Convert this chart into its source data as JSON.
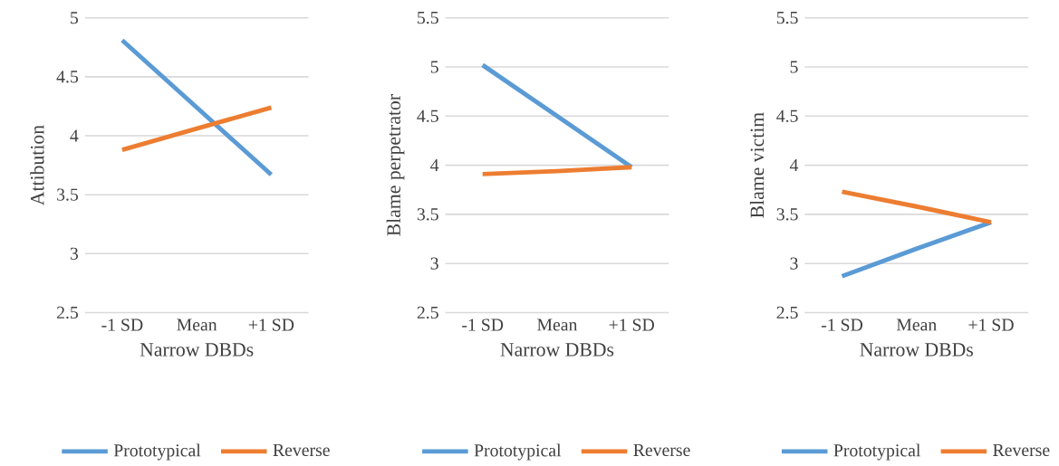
{
  "chart_data": [
    {
      "type": "line",
      "xlabel": "Narrow DBDs",
      "ylabel": "Attibution",
      "categories": [
        "-1 SD",
        "Mean",
        "+1 SD"
      ],
      "series": [
        {
          "name": "Prototypical",
          "color": "#5b9bd5",
          "values": [
            4.81,
            4.24,
            3.67
          ]
        },
        {
          "name": "Reverse",
          "color": "#ed7d31",
          "values": [
            3.88,
            4.06,
            4.24
          ]
        }
      ],
      "ylim": [
        2.5,
        5
      ],
      "yticks": [
        2.5,
        3,
        3.5,
        4,
        4.5,
        5
      ],
      "grid": "y",
      "legend": "bottom",
      "marker": "none",
      "line_style": "solid"
    },
    {
      "type": "line",
      "xlabel": "Narrow DBDs",
      "ylabel": "Blame perpetrator",
      "categories": [
        "-1 SD",
        "Mean",
        "+1 SD"
      ],
      "series": [
        {
          "name": "Prototypical",
          "color": "#5b9bd5",
          "values": [
            5.02,
            4.5,
            3.98
          ]
        },
        {
          "name": "Reverse",
          "color": "#ed7d31",
          "values": [
            3.91,
            3.94,
            3.98
          ]
        }
      ],
      "ylim": [
        2.5,
        5.5
      ],
      "yticks": [
        2.5,
        3,
        3.5,
        4,
        4.5,
        5,
        5.5
      ],
      "grid": "y",
      "legend": "bottom",
      "marker": "none",
      "line_style": "solid"
    },
    {
      "type": "line",
      "xlabel": "Narrow DBDs",
      "ylabel": "Blame victim",
      "categories": [
        "-1 SD",
        "Mean",
        "+1 SD"
      ],
      "series": [
        {
          "name": "Prototypical",
          "color": "#5b9bd5",
          "values": [
            2.87,
            3.15,
            3.42
          ]
        },
        {
          "name": "Reverse",
          "color": "#ed7d31",
          "values": [
            3.73,
            3.58,
            3.42
          ]
        }
      ],
      "ylim": [
        2.5,
        5.5
      ],
      "yticks": [
        2.5,
        3,
        3.5,
        4,
        4.5,
        5,
        5.5
      ],
      "grid": "y",
      "legend": "bottom",
      "marker": "none",
      "line_style": "solid"
    }
  ]
}
